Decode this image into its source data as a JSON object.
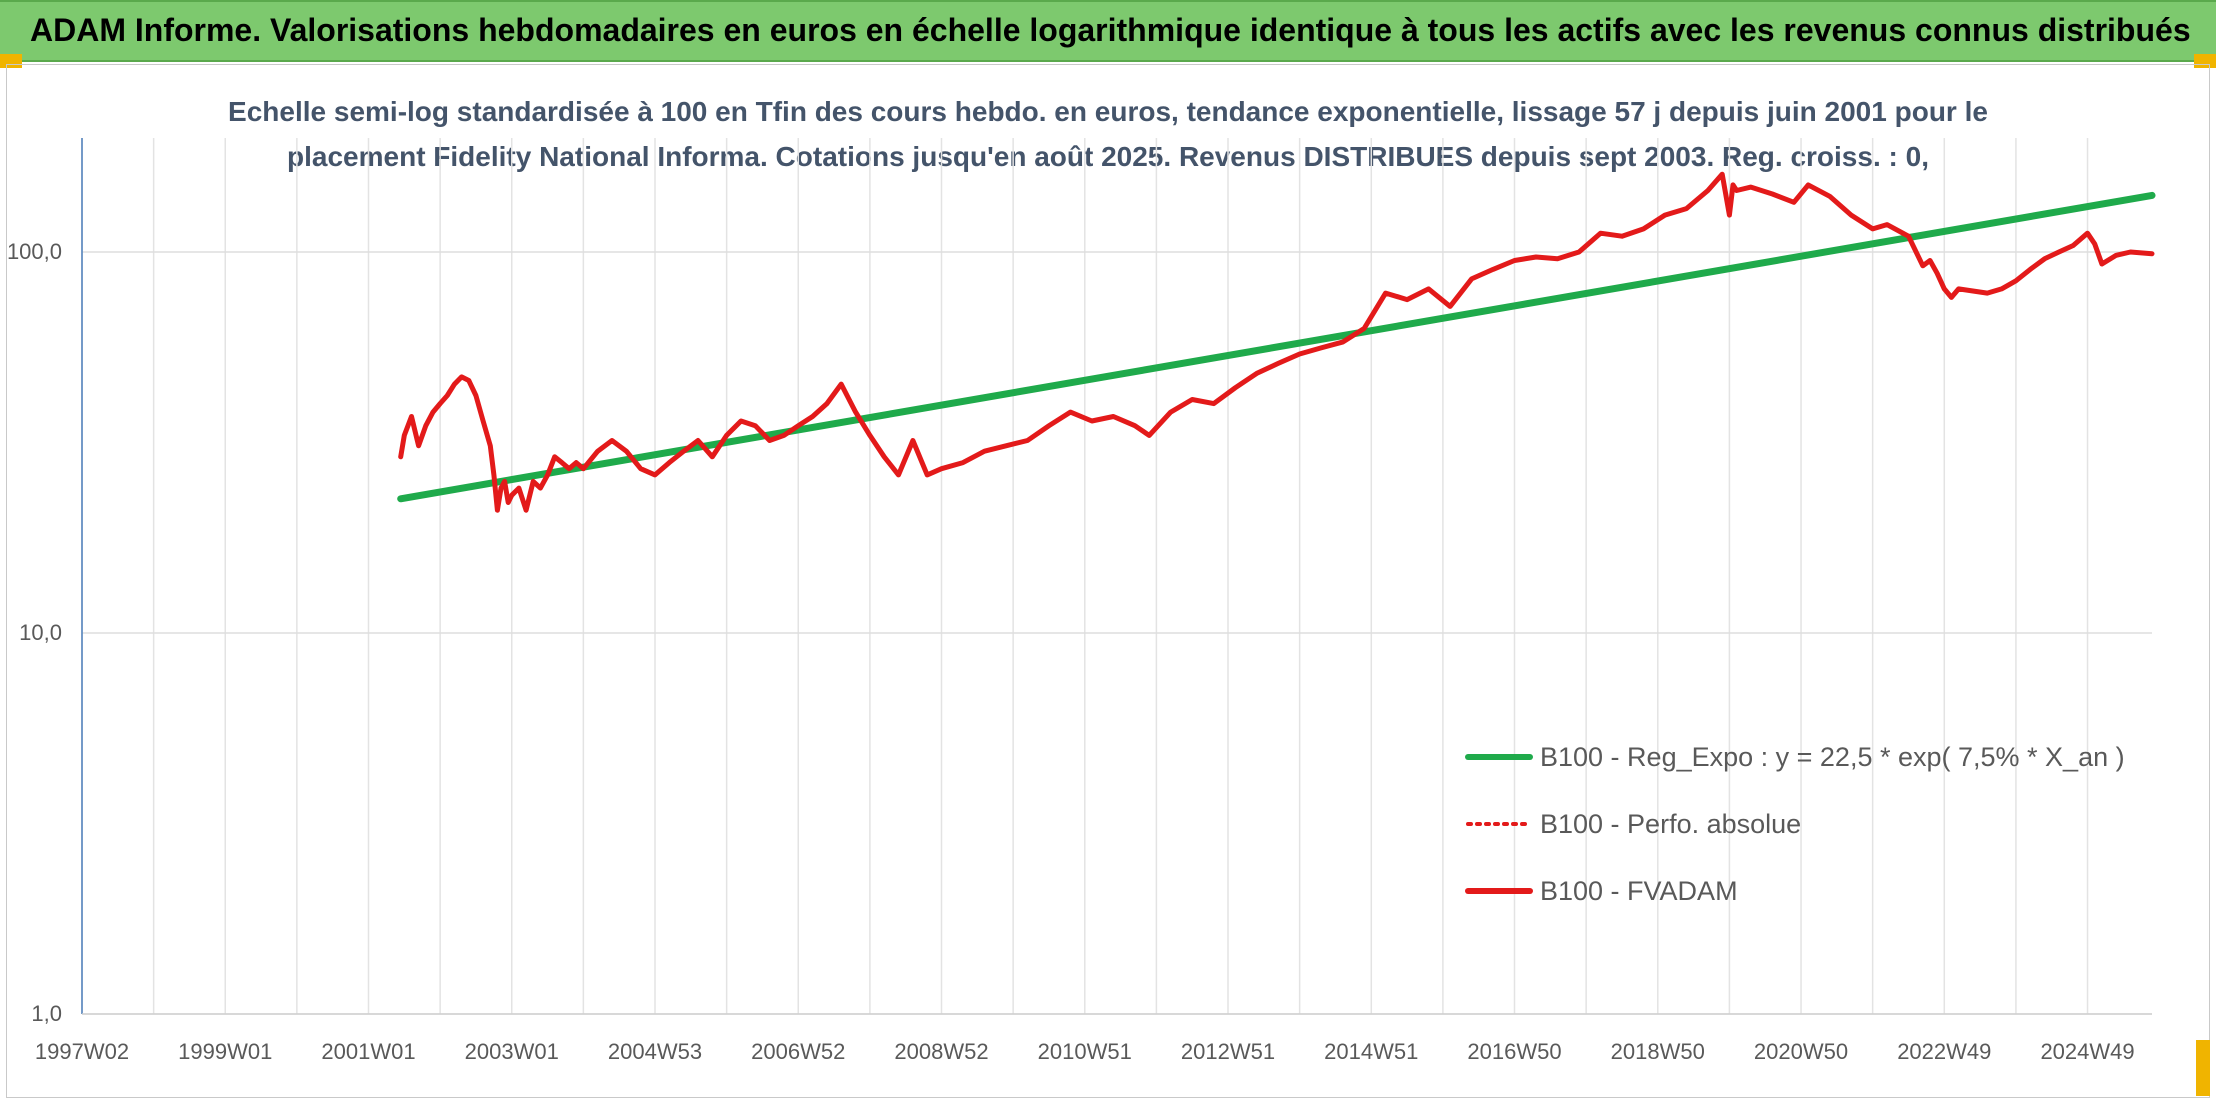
{
  "banner": {
    "title": "ADAM Informe. Valorisations hebdomadaires en euros en échelle logarithmique identique à tous les actifs avec les revenus connus distribués",
    "background": "#7dc96e",
    "corner_color": "#f0b400"
  },
  "chart_data": {
    "type": "line",
    "title_lines": [
      "Echelle semi-log standardisée à 100 en Tfin des cours hebdo. en euros, tendance exponentielle, lissage 57 j depuis juin 2001 pour le",
      "placement Fidelity National Informa. Cotations jusqu'en août 2025. Revenus DISTRIBUES depuis sept 2003. Reg. croiss. : 0,"
    ],
    "y_scale": "log",
    "ylim": [
      1,
      200
    ],
    "y_ticks": [
      {
        "value": 1,
        "label": "1,0"
      },
      {
        "value": 10,
        "label": "10,0"
      },
      {
        "value": 100,
        "label": "100,0"
      }
    ],
    "xlim": [
      1997.0,
      2025.9
    ],
    "x_ticks": [
      {
        "value": 1997.0,
        "label": "1997W02"
      },
      {
        "value": 1999.0,
        "label": "1999W01"
      },
      {
        "value": 2001.0,
        "label": "2001W01"
      },
      {
        "value": 2003.0,
        "label": "2003W01"
      },
      {
        "value": 2005.0,
        "label": "2004W53"
      },
      {
        "value": 2007.0,
        "label": "2006W52"
      },
      {
        "value": 2009.0,
        "label": "2008W52"
      },
      {
        "value": 2011.0,
        "label": "2010W51"
      },
      {
        "value": 2013.0,
        "label": "2012W51"
      },
      {
        "value": 2015.0,
        "label": "2014W51"
      },
      {
        "value": 2017.0,
        "label": "2016W50"
      },
      {
        "value": 2019.0,
        "label": "2018W50"
      },
      {
        "value": 2021.0,
        "label": "2020W50"
      },
      {
        "value": 2023.0,
        "label": "2022W49"
      },
      {
        "value": 2025.0,
        "label": "2024W49"
      }
    ],
    "grid": true,
    "legend_position": "bottom-right",
    "series": [
      {
        "name": "B100 - Reg_Expo : y = 22,5 * exp( 7,5% *  X_an )",
        "color": "#1faa4b",
        "style": "solid",
        "x": [
          2001.45,
          2025.9
        ],
        "y": [
          22.5,
          140.8
        ]
      },
      {
        "name": "B100 - Perfo. absolue",
        "color": "#e31a1a",
        "style": "dotted",
        "x": [],
        "y": []
      },
      {
        "name": "B100 - FVADAM",
        "color": "#e31a1a",
        "style": "solid",
        "x": [
          2001.45,
          2001.5,
          2001.6,
          2001.7,
          2001.8,
          2001.9,
          2002.0,
          2002.1,
          2002.2,
          2002.3,
          2002.4,
          2002.5,
          2002.6,
          2002.7,
          2002.75,
          2002.8,
          2002.85,
          2002.9,
          2002.95,
          2003.0,
          2003.1,
          2003.2,
          2003.3,
          2003.4,
          2003.5,
          2003.6,
          2003.7,
          2003.8,
          2003.9,
          2004.0,
          2004.2,
          2004.4,
          2004.6,
          2004.8,
          2005.0,
          2005.2,
          2005.4,
          2005.6,
          2005.8,
          2006.0,
          2006.2,
          2006.4,
          2006.6,
          2006.8,
          2007.0,
          2007.2,
          2007.4,
          2007.6,
          2007.8,
          2008.0,
          2008.2,
          2008.4,
          2008.6,
          2008.8,
          2009.0,
          2009.3,
          2009.6,
          2009.9,
          2010.2,
          2010.5,
          2010.8,
          2011.1,
          2011.4,
          2011.7,
          2011.9,
          2012.2,
          2012.5,
          2012.8,
          2013.1,
          2013.4,
          2013.7,
          2014.0,
          2014.3,
          2014.6,
          2014.9,
          2015.2,
          2015.5,
          2015.8,
          2016.1,
          2016.4,
          2016.7,
          2017.0,
          2017.3,
          2017.6,
          2017.9,
          2018.2,
          2018.5,
          2018.8,
          2019.1,
          2019.4,
          2019.7,
          2019.9,
          2020.0,
          2020.05,
          2020.1,
          2020.3,
          2020.6,
          2020.9,
          2021.1,
          2021.4,
          2021.7,
          2022.0,
          2022.2,
          2022.5,
          2022.7,
          2022.8,
          2022.9,
          2023.0,
          2023.1,
          2023.2,
          2023.4,
          2023.6,
          2023.8,
          2024.0,
          2024.2,
          2024.4,
          2024.6,
          2024.8,
          2025.0,
          2025.1,
          2025.2,
          2025.4,
          2025.6,
          2025.9
        ],
        "y": [
          29,
          33,
          37,
          31,
          35,
          38,
          40,
          42,
          45,
          47,
          46,
          42,
          36,
          31,
          26,
          21,
          24,
          25,
          22,
          23,
          24,
          21,
          25,
          24,
          26,
          29,
          28,
          27,
          28,
          27,
          30,
          32,
          30,
          27,
          26,
          28,
          30,
          32,
          29,
          33,
          36,
          35,
          32,
          33,
          35,
          37,
          40,
          45,
          38,
          33,
          29,
          26,
          32,
          26,
          27,
          28,
          30,
          31,
          32,
          35,
          38,
          36,
          37,
          35,
          33,
          38,
          41,
          40,
          44,
          48,
          51,
          54,
          56,
          58,
          63,
          78,
          75,
          80,
          72,
          85,
          90,
          95,
          97,
          96,
          100,
          112,
          110,
          115,
          125,
          130,
          145,
          160,
          125,
          150,
          145,
          148,
          142,
          135,
          150,
          140,
          125,
          115,
          118,
          110,
          92,
          95,
          88,
          80,
          76,
          80,
          79,
          78,
          80,
          84,
          90,
          96,
          100,
          104,
          112,
          105,
          93,
          98,
          100,
          99
        ]
      }
    ]
  }
}
